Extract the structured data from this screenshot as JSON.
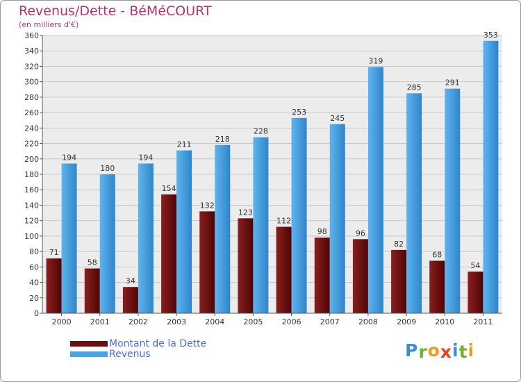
{
  "header": {
    "title": "Revenus/Dette - BéMéCOURT",
    "subtitle": "(en milliers d'€)"
  },
  "legend": {
    "items": [
      {
        "label": "Montant de la Dette",
        "color": "#6e0f0f"
      },
      {
        "label": "Revenus",
        "color": "#4aa3e6"
      }
    ]
  },
  "logo": {
    "text": "Proxiti",
    "letters": [
      {
        "ch": "P",
        "color": "#3b8fd9"
      },
      {
        "ch": "r",
        "color": "#6bb52e"
      },
      {
        "ch": "o",
        "color": "#f39a1e"
      },
      {
        "ch": "x",
        "color": "#e8412c"
      },
      {
        "ch": "i",
        "color": "#3b8fd9"
      },
      {
        "ch": "t",
        "color": "#6bb52e"
      },
      {
        "ch": "i",
        "color": "#f39a1e"
      }
    ]
  },
  "colors": {
    "title": "#b3336b",
    "grid": "#c8c8c8",
    "axis_text": "#333333",
    "plot_bg": "#ececec",
    "dette_light": "#8a1f1f",
    "dette_dark": "#4e0505",
    "revenus_light": "#5fb4ee",
    "revenus_dark": "#2f85c9"
  },
  "chart_data": {
    "type": "bar",
    "title": "Revenus/Dette - BéMéCOURT",
    "ylabel": "(en milliers d'€)",
    "xlabel": "",
    "ylim": [
      0,
      360
    ],
    "ytick_step": 20,
    "grid": true,
    "legend_position": "bottom-left",
    "categories": [
      "2000",
      "2001",
      "2002",
      "2003",
      "2004",
      "2005",
      "2006",
      "2007",
      "2008",
      "2009",
      "2010",
      "2011"
    ],
    "series": [
      {
        "name": "Montant de la Dette",
        "values": [
          71,
          58,
          34,
          154,
          132,
          123,
          112,
          98,
          96,
          82,
          68,
          54
        ]
      },
      {
        "name": "Revenus",
        "values": [
          194,
          180,
          194,
          211,
          218,
          228,
          253,
          245,
          319,
          285,
          291,
          353
        ]
      }
    ]
  }
}
